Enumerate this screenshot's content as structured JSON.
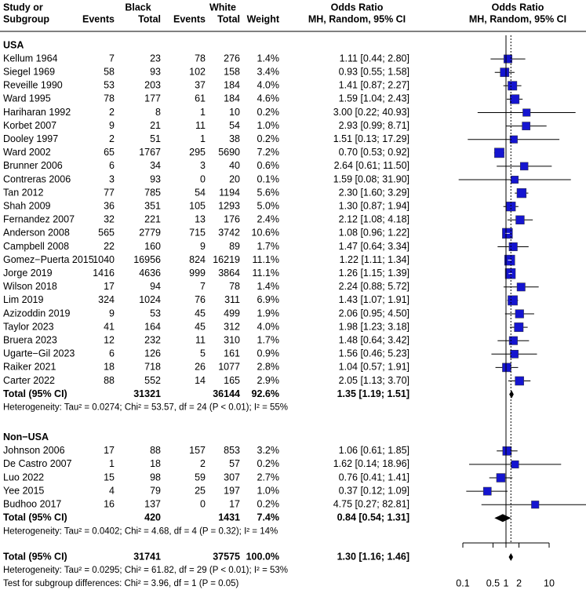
{
  "chart_data": {
    "type": "forest",
    "columns": {
      "study_1": "Study or",
      "study_2": "Subgroup",
      "black": "Black",
      "white": "White",
      "events": "Events",
      "total": "Total",
      "weight": "Weight",
      "or_1": "Odds Ratio",
      "or_2": "MH, Random, 95% CI"
    },
    "xlim": [
      0.1,
      10
    ],
    "xticks": [
      0.1,
      0.5,
      1,
      2,
      10
    ],
    "log": true,
    "color": "#1515d0",
    "muted_color": "#a6a6a6",
    "groups": [
      {
        "name": "USA",
        "studies": [
          {
            "study": "Kellum 1964",
            "e1": 7,
            "n1": 23,
            "e2": 78,
            "n2": 276,
            "w": 1.4,
            "w_label": "1.4%",
            "or": 1.11,
            "lo": 0.44,
            "hi": 2.8,
            "or_label": "1.11 [0.44; 2.80]"
          },
          {
            "study": "Siegel 1969",
            "e1": 58,
            "n1": 93,
            "e2": 102,
            "n2": 158,
            "w": 3.4,
            "w_label": "3.4%",
            "or": 0.93,
            "lo": 0.55,
            "hi": 1.58,
            "or_label": "0.93 [0.55; 1.58]"
          },
          {
            "study": "Reveille 1990",
            "e1": 53,
            "n1": 203,
            "e2": 37,
            "n2": 184,
            "w": 4.0,
            "w_label": "4.0%",
            "or": 1.41,
            "lo": 0.87,
            "hi": 2.27,
            "or_label": "1.41 [0.87; 2.27]"
          },
          {
            "study": "Ward 1995",
            "e1": 78,
            "n1": 177,
            "e2": 61,
            "n2": 184,
            "w": 4.6,
            "w_label": "4.6%",
            "or": 1.59,
            "lo": 1.04,
            "hi": 2.43,
            "or_label": "1.59 [1.04; 2.43]"
          },
          {
            "study": "Hariharan 1992",
            "e1": 2,
            "n1": 8,
            "e2": 1,
            "n2": 10,
            "w": 0.2,
            "w_label": "0.2%",
            "or": 3.0,
            "lo": 0.22,
            "hi": 40.93,
            "or_label": "3.00 [0.22; 40.93]"
          },
          {
            "study": "Korbet 2007",
            "e1": 9,
            "n1": 21,
            "e2": 11,
            "n2": 54,
            "w": 1.0,
            "w_label": "1.0%",
            "or": 2.93,
            "lo": 0.99,
            "hi": 8.71,
            "or_label": "2.93 [0.99; 8.71]"
          },
          {
            "study": "Dooley 1997",
            "e1": 2,
            "n1": 51,
            "e2": 1,
            "n2": 38,
            "w": 0.2,
            "w_label": "0.2%",
            "or": 1.51,
            "lo": 0.13,
            "hi": 17.29,
            "or_label": "1.51 [0.13; 17.29]"
          },
          {
            "study": "Ward 2002",
            "e1": 65,
            "n1": 1767,
            "e2": 295,
            "n2": 5690,
            "w": 7.2,
            "w_label": "7.2%",
            "or": 0.7,
            "lo": 0.53,
            "hi": 0.92,
            "or_label": "0.70 [0.53; 0.92]"
          },
          {
            "study": "Brunner 2006",
            "e1": 6,
            "n1": 34,
            "e2": 3,
            "n2": 40,
            "w": 0.6,
            "w_label": "0.6%",
            "or": 2.64,
            "lo": 0.61,
            "hi": 11.5,
            "or_label": "2.64 [0.61; 11.50]"
          },
          {
            "study": "Contreras 2006",
            "e1": 3,
            "n1": 93,
            "e2": 0,
            "n2": 20,
            "w": 0.1,
            "w_label": "0.1%",
            "or": 1.59,
            "lo": 0.08,
            "hi": 31.9,
            "or_label": "1.59 [0.08; 31.90]"
          },
          {
            "study": "Tan 2012",
            "e1": 77,
            "n1": 785,
            "e2": 54,
            "n2": 1194,
            "w": 5.6,
            "w_label": "5.6%",
            "or": 2.3,
            "lo": 1.6,
            "hi": 3.29,
            "or_label": "2.30 [1.60; 3.29]"
          },
          {
            "study": "Shah 2009",
            "e1": 36,
            "n1": 351,
            "e2": 105,
            "n2": 1293,
            "w": 5.0,
            "w_label": "5.0%",
            "or": 1.3,
            "lo": 0.87,
            "hi": 1.94,
            "or_label": "1.30 [0.87; 1.94]"
          },
          {
            "study": "Fernandez 2007",
            "e1": 32,
            "n1": 221,
            "e2": 13,
            "n2": 176,
            "w": 2.4,
            "w_label": "2.4%",
            "or": 2.12,
            "lo": 1.08,
            "hi": 4.18,
            "or_label": "2.12 [1.08; 4.18]"
          },
          {
            "study": "Anderson 2008",
            "e1": 565,
            "n1": 2779,
            "e2": 715,
            "n2": 3742,
            "w": 10.6,
            "w_label": "10.6%",
            "or": 1.08,
            "lo": 0.96,
            "hi": 1.22,
            "or_label": "1.08 [0.96; 1.22]"
          },
          {
            "study": "Campbell 2008",
            "e1": 22,
            "n1": 160,
            "e2": 9,
            "n2": 89,
            "w": 1.7,
            "w_label": "1.7%",
            "or": 1.47,
            "lo": 0.64,
            "hi": 3.34,
            "or_label": "1.47 [0.64; 3.34]"
          },
          {
            "study": "Gomez−Puerta 2015",
            "e1": 1040,
            "n1": 16956,
            "e2": 824,
            "n2": 16219,
            "w": 11.1,
            "w_label": "11.1%",
            "or": 1.22,
            "lo": 1.11,
            "hi": 1.34,
            "or_label": "1.22 [1.11; 1.34]"
          },
          {
            "study": "Jorge 2019",
            "e1": 1416,
            "n1": 4636,
            "e2": 999,
            "n2": 3864,
            "w": 11.1,
            "w_label": "11.1%",
            "or": 1.26,
            "lo": 1.15,
            "hi": 1.39,
            "or_label": "1.26 [1.15; 1.39]"
          },
          {
            "study": "Wilson 2018",
            "e1": 17,
            "n1": 94,
            "e2": 7,
            "n2": 78,
            "w": 1.4,
            "w_label": "1.4%",
            "or": 2.24,
            "lo": 0.88,
            "hi": 5.72,
            "or_label": "2.24 [0.88; 5.72]"
          },
          {
            "study": "Lim 2019",
            "e1": 324,
            "n1": 1024,
            "e2": 76,
            "n2": 311,
            "w": 6.9,
            "w_label": "6.9%",
            "or": 1.43,
            "lo": 1.07,
            "hi": 1.91,
            "or_label": "1.43 [1.07; 1.91]"
          },
          {
            "study": "Azizoddin 2019",
            "e1": 9,
            "n1": 53,
            "e2": 45,
            "n2": 499,
            "w": 1.9,
            "w_label": "1.9%",
            "or": 2.06,
            "lo": 0.95,
            "hi": 4.5,
            "or_label": "2.06 [0.95; 4.50]"
          },
          {
            "study": "Taylor 2023",
            "e1": 41,
            "n1": 164,
            "e2": 45,
            "n2": 312,
            "w": 4.0,
            "w_label": "4.0%",
            "or": 1.98,
            "lo": 1.23,
            "hi": 3.18,
            "or_label": "1.98 [1.23; 3.18]"
          },
          {
            "study": "Bruera 2023",
            "e1": 12,
            "n1": 232,
            "e2": 11,
            "n2": 310,
            "w": 1.7,
            "w_label": "1.7%",
            "or": 1.48,
            "lo": 0.64,
            "hi": 3.42,
            "or_label": "1.48 [0.64; 3.42]"
          },
          {
            "study": "Ugarte−Gil 2023",
            "e1": 6,
            "n1": 126,
            "e2": 5,
            "n2": 161,
            "w": 0.9,
            "w_label": "0.9%",
            "or": 1.56,
            "lo": 0.46,
            "hi": 5.23,
            "or_label": "1.56 [0.46; 5.23]"
          },
          {
            "study": "Raiker 2021",
            "e1": 18,
            "n1": 718,
            "e2": 26,
            "n2": 1077,
            "w": 2.8,
            "w_label": "2.8%",
            "or": 1.04,
            "lo": 0.57,
            "hi": 1.91,
            "or_label": "1.04 [0.57; 1.91]"
          },
          {
            "study": "Carter 2022",
            "e1": 88,
            "n1": 552,
            "e2": 14,
            "n2": 165,
            "w": 2.9,
            "w_label": "2.9%",
            "or": 2.05,
            "lo": 1.13,
            "hi": 3.7,
            "or_label": "2.05 [1.13; 3.70]"
          }
        ],
        "total": {
          "study": "Total (95% CI)",
          "n1": 31321,
          "n2": 36144,
          "w": 92.6,
          "w_label": "92.6%",
          "or": 1.35,
          "lo": 1.19,
          "hi": 1.51,
          "or_label": "1.35 [1.19; 1.51]"
        },
        "heterogeneity": "Heterogeneity: Tau² = 0.0274; Chi² = 53.57, df = 24 (P < 0.01); I² = 55%"
      },
      {
        "name": "Non−USA",
        "studies": [
          {
            "study": "Johnson 2006",
            "e1": 17,
            "n1": 88,
            "e2": 157,
            "n2": 853,
            "w": 3.2,
            "w_label": "3.2%",
            "or": 1.06,
            "lo": 0.61,
            "hi": 1.85,
            "or_label": "1.06 [0.61; 1.85]"
          },
          {
            "study": "De Castro 2007",
            "e1": 1,
            "n1": 18,
            "e2": 2,
            "n2": 57,
            "w": 0.2,
            "w_label": "0.2%",
            "or": 1.62,
            "lo": 0.14,
            "hi": 18.96,
            "or_label": "1.62 [0.14; 18.96]"
          },
          {
            "study": "Luo 2022",
            "e1": 15,
            "n1": 98,
            "e2": 59,
            "n2": 307,
            "w": 2.7,
            "w_label": "2.7%",
            "or": 0.76,
            "lo": 0.41,
            "hi": 1.41,
            "or_label": "0.76 [0.41; 1.41]"
          },
          {
            "study": "Yee 2015",
            "e1": 4,
            "n1": 79,
            "e2": 25,
            "n2": 197,
            "w": 1.0,
            "w_label": "1.0%",
            "or": 0.37,
            "lo": 0.12,
            "hi": 1.09,
            "or_label": "0.37 [0.12; 1.09]"
          },
          {
            "study": "Budhoo 2017",
            "e1": 16,
            "n1": 137,
            "e2": 0,
            "n2": 17,
            "w": 0.2,
            "w_label": "0.2%",
            "or": 4.75,
            "lo": 0.27,
            "hi": 82.81,
            "or_label": "4.75 [0.27; 82.81]"
          }
        ],
        "total": {
          "study": "Total (95% CI)",
          "n1": 420,
          "n2": 1431,
          "w": 7.4,
          "w_label": "7.4%",
          "or": 0.84,
          "lo": 0.54,
          "hi": 1.31,
          "or_label": "0.84 [0.54; 1.31]"
        },
        "heterogeneity": "Heterogeneity: Tau² = 0.0402; Chi² = 4.68, df = 4 (P = 0.32); I² = 14%"
      }
    ],
    "overall": {
      "study": "Total (95% CI)",
      "n1": 31741,
      "n2": 37575,
      "w": 100.0,
      "w_label": "100.0%",
      "or": 1.3,
      "lo": 1.16,
      "hi": 1.46,
      "or_label": "1.30 [1.16; 1.46]"
    },
    "overall_heterogeneity": "Heterogeneity: Tau² = 0.0295; Chi² = 61.82, df = 29 (P < 0.01); I² = 53%",
    "subgroup_test": "Test for subgroup differences: Chi² = 3.96, df = 1 (P = 0.05)"
  }
}
